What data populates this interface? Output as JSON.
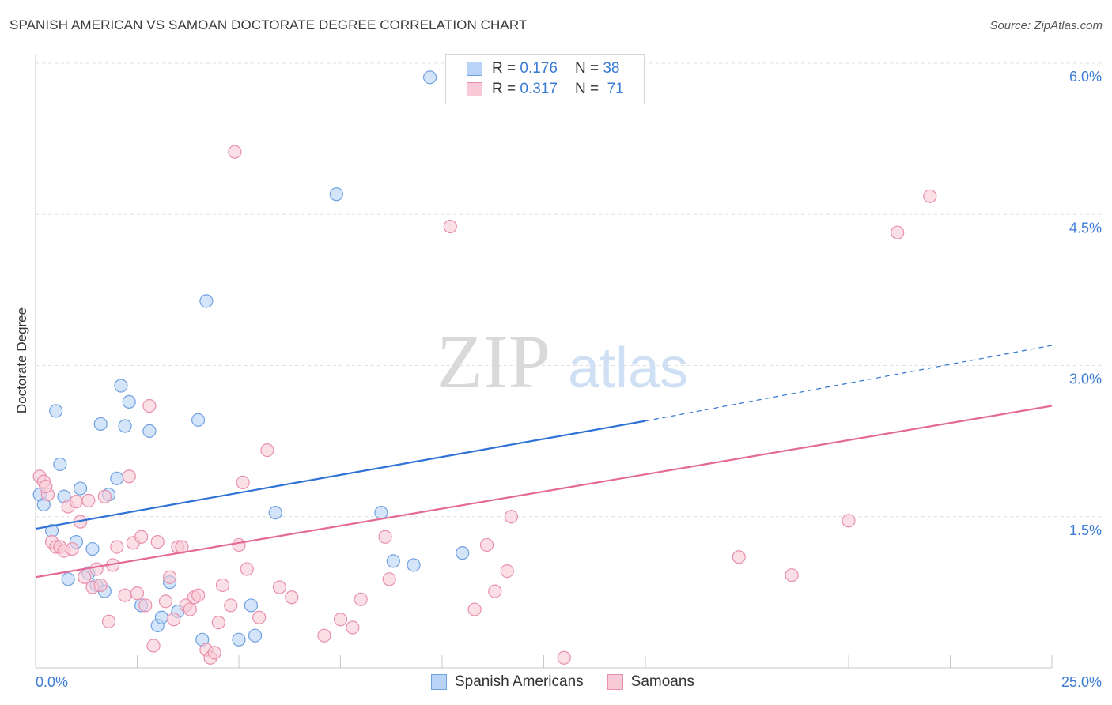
{
  "header": {
    "title": "SPANISH AMERICAN VS SAMOAN DOCTORATE DEGREE CORRELATION CHART",
    "source": "Source: ZipAtlas.com"
  },
  "watermark": {
    "zip": "ZIP",
    "atlas": "atlas"
  },
  "legend": {
    "rows": [
      {
        "r_label": "R =",
        "r_value": "0.176",
        "n_label": "N =",
        "n_value": "38"
      },
      {
        "r_label": "R =",
        "r_value": "0.317",
        "n_label": "N =",
        "n_value": "71"
      }
    ]
  },
  "bottom_legend": {
    "series1": "Spanish Americans",
    "series2": "Samoans"
  },
  "colors": {
    "blue_fill": "#b8d3f5",
    "blue_stroke": "#6fa0e0",
    "blue_line": "#2f72d6",
    "pink_fill": "#f8c9d7",
    "pink_stroke": "#e890ac",
    "pink_line": "#e46a95",
    "tick_text": "#3a7bd5"
  },
  "chart_data": {
    "type": "scatter",
    "title": "SPANISH AMERICAN VS SAMOAN DOCTORATE DEGREE CORRELATION CHART",
    "xlabel": "",
    "ylabel": "Doctorate Degree",
    "xlim": [
      0,
      25
    ],
    "ylim": [
      0,
      6
    ],
    "x_tick_labels": [
      "0.0%",
      "25.0%"
    ],
    "y_ticks": [
      1.5,
      3.0,
      4.5,
      6.0
    ],
    "y_tick_labels": [
      "1.5%",
      "3.0%",
      "4.5%",
      "6.0%"
    ],
    "grid": true,
    "series": [
      {
        "name": "Spanish Americans",
        "color": "#6fa0e0",
        "trend": {
          "x0": 0,
          "y0": 1.38,
          "x1": 15,
          "y1": 2.45,
          "dashed_to_x": 25,
          "dashed_to_y": 3.2
        },
        "points": [
          [
            0.1,
            1.72
          ],
          [
            0.2,
            1.62
          ],
          [
            0.4,
            1.36
          ],
          [
            0.5,
            2.55
          ],
          [
            0.6,
            2.02
          ],
          [
            0.7,
            1.7
          ],
          [
            0.8,
            0.88
          ],
          [
            1.0,
            1.25
          ],
          [
            1.1,
            1.78
          ],
          [
            1.3,
            0.94
          ],
          [
            1.4,
            1.18
          ],
          [
            1.5,
            0.82
          ],
          [
            1.6,
            2.42
          ],
          [
            1.7,
            0.76
          ],
          [
            1.8,
            1.72
          ],
          [
            2.0,
            1.88
          ],
          [
            2.1,
            2.8
          ],
          [
            2.2,
            2.4
          ],
          [
            2.3,
            2.64
          ],
          [
            2.6,
            0.62
          ],
          [
            2.8,
            2.35
          ],
          [
            3.0,
            0.42
          ],
          [
            3.1,
            0.5
          ],
          [
            3.3,
            0.85
          ],
          [
            3.5,
            0.56
          ],
          [
            4.0,
            2.46
          ],
          [
            4.1,
            0.28
          ],
          [
            4.2,
            3.64
          ],
          [
            5.0,
            0.28
          ],
          [
            5.3,
            0.62
          ],
          [
            5.4,
            0.32
          ],
          [
            5.9,
            1.54
          ],
          [
            7.4,
            4.7
          ],
          [
            8.5,
            1.54
          ],
          [
            8.8,
            1.06
          ],
          [
            9.3,
            1.02
          ],
          [
            9.7,
            5.86
          ],
          [
            10.5,
            1.14
          ]
        ]
      },
      {
        "name": "Samoans",
        "color": "#e890ac",
        "trend": {
          "x0": 0,
          "y0": 0.9,
          "x1": 25,
          "y1": 2.6
        },
        "points": [
          [
            0.1,
            1.9
          ],
          [
            0.2,
            1.85
          ],
          [
            0.3,
            1.72
          ],
          [
            0.4,
            1.25
          ],
          [
            0.5,
            1.2
          ],
          [
            0.6,
            1.2
          ],
          [
            0.7,
            1.16
          ],
          [
            0.8,
            1.6
          ],
          [
            0.9,
            1.18
          ],
          [
            1.0,
            1.65
          ],
          [
            1.1,
            1.45
          ],
          [
            1.3,
            1.66
          ],
          [
            1.4,
            0.8
          ],
          [
            1.5,
            0.98
          ],
          [
            1.6,
            0.82
          ],
          [
            1.7,
            1.7
          ],
          [
            1.8,
            0.46
          ],
          [
            1.9,
            1.02
          ],
          [
            2.0,
            1.2
          ],
          [
            2.2,
            0.72
          ],
          [
            2.3,
            1.9
          ],
          [
            2.4,
            1.24
          ],
          [
            2.5,
            0.74
          ],
          [
            2.6,
            1.3
          ],
          [
            2.7,
            0.62
          ],
          [
            2.8,
            2.6
          ],
          [
            2.9,
            0.22
          ],
          [
            3.0,
            1.25
          ],
          [
            3.2,
            0.66
          ],
          [
            3.4,
            0.48
          ],
          [
            3.5,
            1.2
          ],
          [
            3.6,
            1.2
          ],
          [
            3.7,
            0.62
          ],
          [
            3.8,
            0.58
          ],
          [
            3.9,
            0.7
          ],
          [
            4.0,
            0.72
          ],
          [
            4.2,
            0.18
          ],
          [
            4.3,
            0.1
          ],
          [
            4.4,
            0.15
          ],
          [
            4.5,
            0.45
          ],
          [
            4.6,
            0.82
          ],
          [
            4.8,
            0.62
          ],
          [
            4.9,
            5.12
          ],
          [
            5.0,
            1.22
          ],
          [
            5.1,
            1.84
          ],
          [
            5.2,
            0.98
          ],
          [
            5.5,
            0.5
          ],
          [
            5.7,
            2.16
          ],
          [
            6.0,
            0.8
          ],
          [
            6.3,
            0.7
          ],
          [
            7.1,
            0.32
          ],
          [
            7.5,
            0.48
          ],
          [
            7.8,
            0.4
          ],
          [
            8.0,
            0.68
          ],
          [
            8.6,
            1.3
          ],
          [
            8.7,
            0.88
          ],
          [
            10.2,
            4.38
          ],
          [
            10.8,
            0.58
          ],
          [
            11.1,
            1.22
          ],
          [
            11.3,
            0.76
          ],
          [
            11.6,
            0.96
          ],
          [
            11.7,
            1.5
          ],
          [
            13.0,
            0.1
          ],
          [
            17.3,
            1.1
          ],
          [
            18.6,
            0.92
          ],
          [
            20.0,
            1.46
          ],
          [
            21.2,
            4.32
          ],
          [
            22.0,
            4.68
          ],
          [
            0.25,
            1.8
          ],
          [
            1.2,
            0.9
          ],
          [
            3.3,
            0.9
          ]
        ]
      }
    ]
  }
}
